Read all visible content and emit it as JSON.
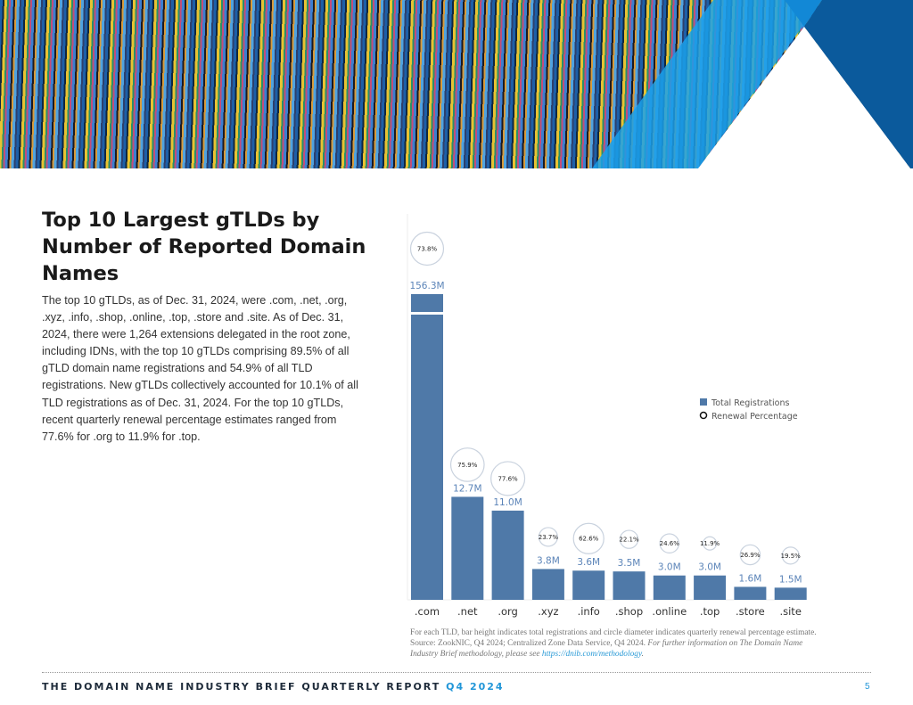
{
  "title": "Top 10 Largest gTLDs by Number of Reported Domain Names",
  "body": "The top 10 gTLDs, as of Dec. 31, 2024, were .com, .net, .org, .xyz, .info, .shop, .online, .top, .store and .site. As of Dec. 31, 2024, there were 1,264 extensions delegated in the root zone, including IDNs, with the top 10 gTLDs comprising 89.5% of all gTLD domain name registrations and 54.9% of all TLD registrations. New gTLDs collectively accounted for 10.1% of all TLD registrations as of Dec. 31, 2024. For the top 10 gTLDs, recent quarterly renewal percentage estimates ranged from 77.6% for .org to 11.9% for .top.",
  "caption": {
    "text": "For each TLD, bar height indicates total registrations and circle diameter indicates quarterly renewal percentage estimate. Source: ZookNIC, Q4 2024; Centralized Zone Data Service, Q4 2024. ",
    "italic": "For further information on The Domain Name Industry Brief methodology, please see ",
    "link": "https://dnib.com/methodology",
    "end": "."
  },
  "footer": {
    "text": "THE DOMAIN NAME INDUSTRY BRIEF QUARTERLY REPORT",
    "quarter": "Q4 2024",
    "page": "5"
  },
  "colors": {
    "bar": "#4f79a8",
    "label": "#5b84b8",
    "circle": "#c9d2de",
    "accent": "#2196d8"
  },
  "chart_data": {
    "type": "bar",
    "categories": [
      ".com",
      ".net",
      ".org",
      ".xyz",
      ".info",
      ".shop",
      ".online",
      ".top",
      ".store",
      ".site"
    ],
    "series": [
      {
        "name": "Total Registrations",
        "unit": "M",
        "values": [
          156.3,
          12.7,
          11.0,
          3.8,
          3.6,
          3.5,
          3.0,
          3.0,
          1.6,
          1.5
        ],
        "labels": [
          "156.3M",
          "12.7M",
          "11.0M",
          "3.8M",
          "3.6M",
          "3.5M",
          "3.0M",
          "3.0M",
          "1.6M",
          "1.5M"
        ]
      },
      {
        "name": "Renewal Percentage",
        "unit": "%",
        "values": [
          73.8,
          75.9,
          77.6,
          23.7,
          62.6,
          22.1,
          24.6,
          11.9,
          26.9,
          19.5
        ],
        "labels": [
          "73.8%",
          "75.9%",
          "77.6%",
          "23.7%",
          "62.6%",
          "22.1%",
          "24.6%",
          "11.9%",
          "26.9%",
          "19.5%"
        ]
      }
    ],
    "axis_break": ".com bar truncated",
    "legend": [
      "Total Registrations",
      "Renewal Percentage"
    ],
    "legend_position": "right",
    "grid": false
  }
}
